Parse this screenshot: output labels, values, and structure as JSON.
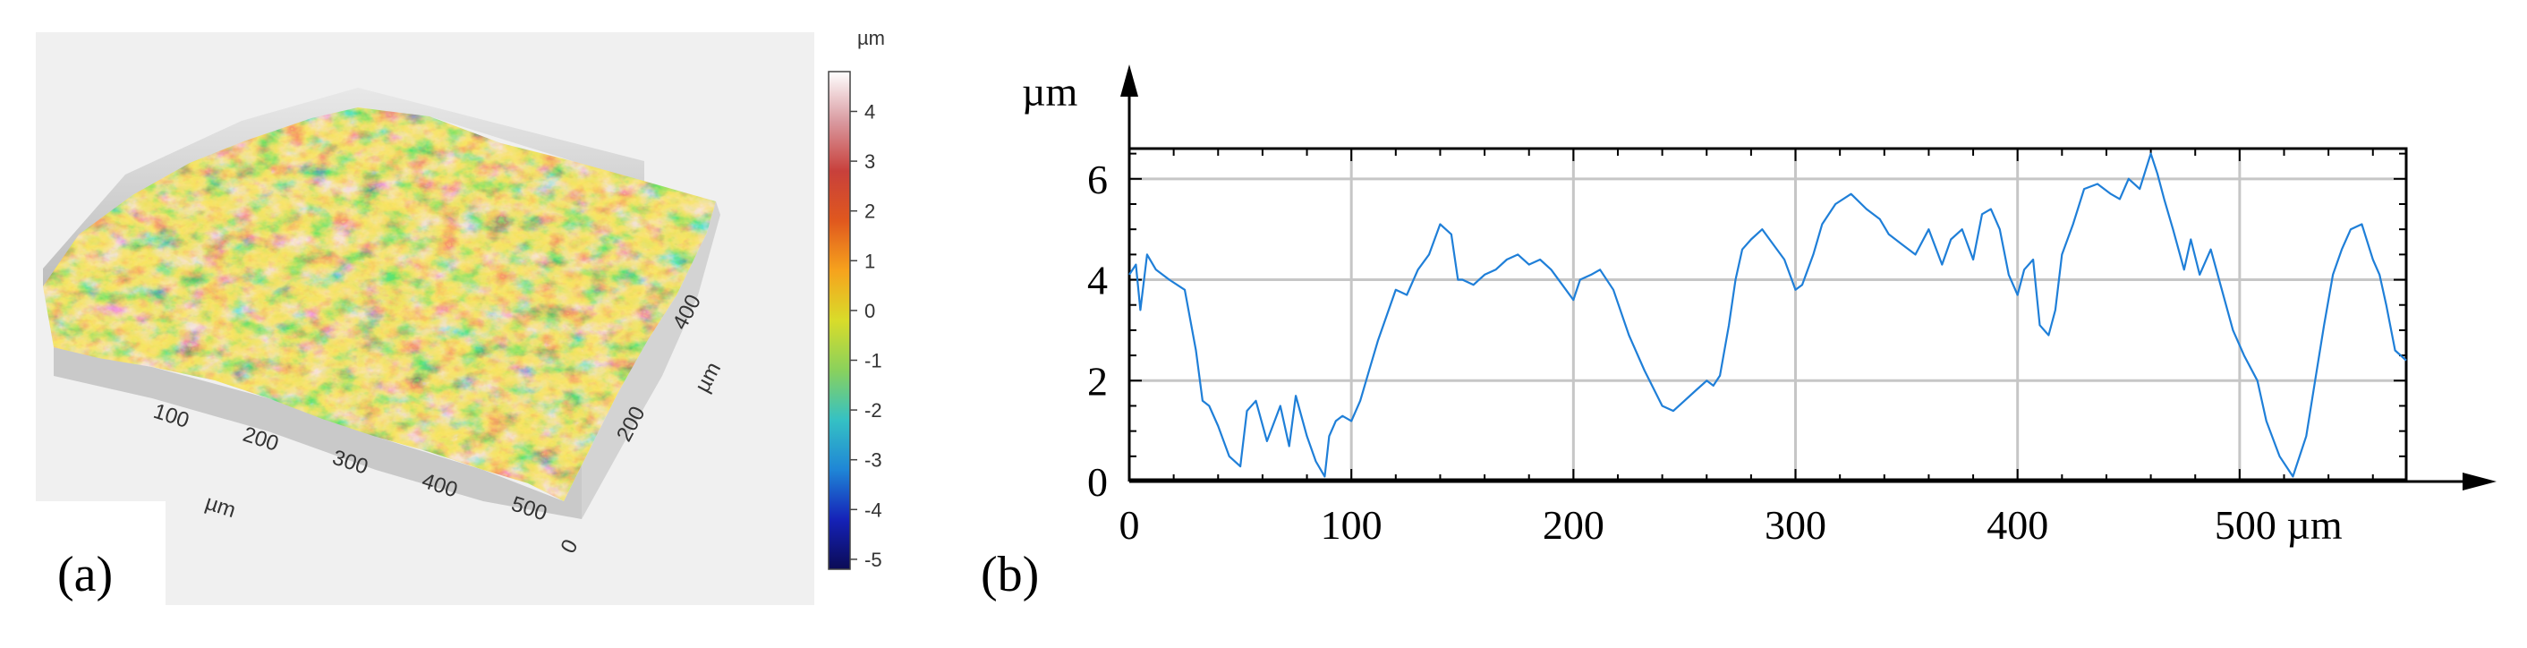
{
  "panel_a": {
    "label": "(a)",
    "colorbar": {
      "unit": "µm",
      "ticks": [
        "4",
        "3",
        "2",
        "1",
        "0",
        "-1",
        "-2",
        "-3",
        "-4",
        "-5"
      ],
      "range": [
        -5.2,
        4.8
      ],
      "colors": [
        "#0b0b55",
        "#1522b8",
        "#1f86d6",
        "#35c1c4",
        "#8ad15c",
        "#d9dc2a",
        "#f6a31d",
        "#e0581e",
        "#c8403b",
        "#d99aa0",
        "#ffffff"
      ]
    },
    "x_ticks": [
      "100",
      "200",
      "300",
      "400",
      "500"
    ],
    "x_label": "µm",
    "y_ticks": [
      "0",
      "200",
      "400"
    ],
    "y_label": "µm",
    "surface_color_hint": "3D surface topography (rendered illustration)"
  },
  "panel_b": {
    "label": "(b)",
    "y_axis_label": "µm",
    "x_unit_suffix": "µm",
    "chart_data": {
      "type": "line",
      "series_color": "#1f7fd8",
      "xlim": [
        0,
        575
      ],
      "ylim": [
        0,
        6.6
      ],
      "x_ticks": [
        0,
        100,
        200,
        300,
        400,
        500
      ],
      "x_tick_labels": [
        "0",
        "100",
        "200",
        "300",
        "400",
        "500 µm"
      ],
      "y_ticks": [
        0,
        2,
        4,
        6
      ],
      "y_tick_labels": [
        "0",
        "2",
        "4",
        "6"
      ],
      "grid": true,
      "x": [
        0,
        3,
        5,
        8,
        12,
        18,
        25,
        30,
        33,
        36,
        40,
        45,
        50,
        53,
        57,
        62,
        68,
        72,
        75,
        80,
        84,
        88,
        90,
        93,
        96,
        100,
        104,
        108,
        112,
        116,
        120,
        125,
        130,
        135,
        140,
        145,
        148,
        150,
        155,
        160,
        165,
        170,
        175,
        180,
        185,
        190,
        195,
        200,
        203,
        208,
        212,
        218,
        225,
        232,
        240,
        245,
        250,
        255,
        260,
        263,
        266,
        270,
        273,
        276,
        280,
        285,
        290,
        295,
        300,
        303,
        308,
        312,
        318,
        325,
        332,
        338,
        342,
        348,
        354,
        360,
        366,
        370,
        375,
        380,
        384,
        388,
        392,
        396,
        400,
        403,
        407,
        410,
        414,
        417,
        420,
        425,
        430,
        436,
        442,
        446,
        450,
        455,
        460,
        463,
        466,
        470,
        475,
        478,
        482,
        487,
        492,
        497,
        502,
        508,
        512,
        518,
        524,
        530,
        534,
        538,
        542,
        546,
        550,
        555,
        560,
        563,
        566,
        570,
        575
      ],
      "y": [
        4.1,
        4.3,
        3.4,
        4.5,
        4.2,
        4.0,
        3.8,
        2.6,
        1.6,
        1.5,
        1.1,
        0.5,
        0.3,
        1.4,
        1.6,
        0.8,
        1.5,
        0.7,
        1.7,
        0.9,
        0.4,
        0.1,
        0.9,
        1.2,
        1.3,
        1.2,
        1.6,
        2.2,
        2.8,
        3.3,
        3.8,
        3.7,
        4.2,
        4.5,
        5.1,
        4.9,
        4.0,
        4.0,
        3.9,
        4.1,
        4.2,
        4.4,
        4.5,
        4.3,
        4.4,
        4.2,
        3.9,
        3.6,
        4.0,
        4.1,
        4.2,
        3.8,
        2.9,
        2.2,
        1.5,
        1.4,
        1.6,
        1.8,
        2.0,
        1.9,
        2.1,
        3.1,
        4.0,
        4.6,
        4.8,
        5.0,
        4.7,
        4.4,
        3.8,
        3.9,
        4.5,
        5.1,
        5.5,
        5.7,
        5.4,
        5.2,
        4.9,
        4.7,
        4.5,
        5.0,
        4.3,
        4.8,
        5.0,
        4.4,
        5.3,
        5.4,
        5.0,
        4.1,
        3.7,
        4.2,
        4.4,
        3.1,
        2.9,
        3.4,
        4.5,
        5.1,
        5.8,
        5.9,
        5.7,
        5.6,
        6.0,
        5.8,
        6.5,
        6.1,
        5.6,
        5.0,
        4.2,
        4.8,
        4.1,
        4.6,
        3.8,
        3.0,
        2.5,
        2.0,
        1.2,
        0.5,
        0.1,
        0.9,
        2.0,
        3.1,
        4.1,
        4.6,
        5.0,
        5.1,
        4.4,
        4.1,
        3.5,
        2.6,
        2.4
      ]
    }
  }
}
